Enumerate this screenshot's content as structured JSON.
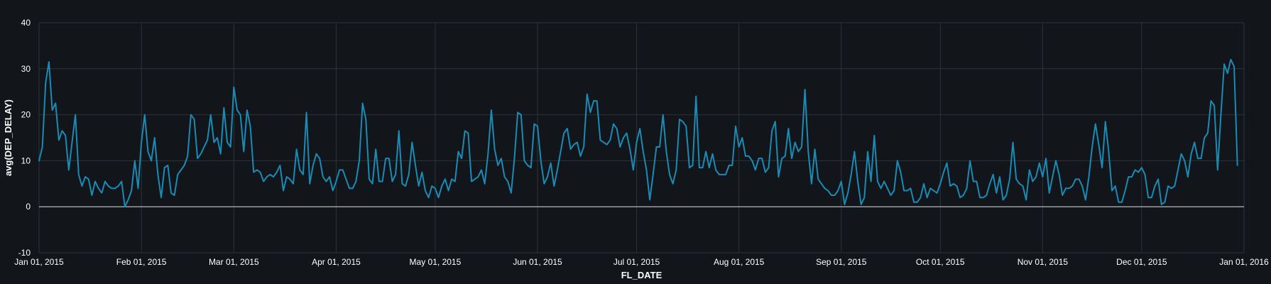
{
  "chart_data": {
    "type": "line",
    "xlabel": "FL_DATE",
    "ylabel": "avg(DEP_DELAY)",
    "ylim": [
      -10,
      40
    ],
    "yticks": [
      -10,
      0,
      10,
      20,
      30,
      40
    ],
    "xlim": [
      "2015-01-01",
      "2016-01-01"
    ],
    "xticks": [
      {
        "date": "2015-01-01",
        "label": "Jan 01, 2015"
      },
      {
        "date": "2015-02-01",
        "label": "Feb 01, 2015"
      },
      {
        "date": "2015-03-01",
        "label": "Mar 01, 2015"
      },
      {
        "date": "2015-04-01",
        "label": "Apr 01, 2015"
      },
      {
        "date": "2015-05-01",
        "label": "May 01, 2015"
      },
      {
        "date": "2015-06-01",
        "label": "Jun 01, 2015"
      },
      {
        "date": "2015-07-01",
        "label": "Jul 01, 2015"
      },
      {
        "date": "2015-08-01",
        "label": "Aug 01, 2015"
      },
      {
        "date": "2015-09-01",
        "label": "Sep 01, 2015"
      },
      {
        "date": "2015-10-01",
        "label": "Oct 01, 2015"
      },
      {
        "date": "2015-11-01",
        "label": "Nov 01, 2015"
      },
      {
        "date": "2015-12-01",
        "label": "Dec 01, 2015"
      },
      {
        "date": "2016-01-01",
        "label": "Jan 01, 2016"
      }
    ],
    "grid": true,
    "line_color": "#1b8bb5",
    "series": [
      {
        "x_start": "2015-01-01",
        "x_step_days": 1,
        "values": [
          10,
          13,
          27,
          31.5,
          21,
          22.5,
          14.5,
          16.5,
          15.5,
          8,
          14,
          20,
          7,
          4.5,
          6.5,
          6,
          2.5,
          5.5,
          4,
          3,
          5.5,
          4.5,
          4,
          4,
          4.5,
          5.5,
          0,
          1.5,
          3.5,
          10,
          4,
          14,
          20,
          12,
          10,
          15,
          7,
          2,
          8.5,
          9,
          3,
          2.5,
          7,
          8,
          9,
          11,
          20,
          19,
          10.5,
          11.5,
          13,
          14.5,
          20,
          14,
          15,
          11.5,
          21.5,
          14,
          13,
          26,
          21,
          20,
          12,
          21,
          17.5,
          7.5,
          8,
          7.5,
          5.5,
          6.5,
          7,
          6.5,
          7.5,
          9,
          3.5,
          6.5,
          6,
          5,
          12.5,
          8,
          7,
          20.5,
          5,
          9,
          11.5,
          10.5,
          6.5,
          5.5,
          6.5,
          3.5,
          5.5,
          8,
          8,
          6,
          4,
          4,
          5.5,
          10,
          22.5,
          19,
          6,
          5,
          12.5,
          5.5,
          5.5,
          10.5,
          10.5,
          5.5,
          7,
          16.5,
          5,
          4.5,
          7,
          14,
          9,
          4.5,
          7.5,
          3.5,
          2,
          4.5,
          4,
          2,
          4.5,
          6,
          3.5,
          6,
          5.5,
          12,
          10.5,
          16.5,
          16,
          5.5,
          6,
          6.5,
          8,
          5,
          11.5,
          21,
          12.5,
          9,
          10.5,
          6.5,
          5.5,
          3,
          10.5,
          20.5,
          20,
          10,
          9,
          8.5,
          18,
          17.5,
          10,
          5,
          6.5,
          9.5,
          4.5,
          8,
          12,
          16,
          17,
          12.5,
          13.5,
          14,
          11,
          13,
          24.5,
          20.5,
          23,
          23,
          14.5,
          14,
          13.5,
          14.5,
          18,
          17,
          13,
          15,
          16,
          12.5,
          8,
          14,
          17,
          12,
          8,
          1.5,
          7,
          13,
          13,
          20,
          12,
          7,
          5,
          8,
          19,
          18.5,
          17.5,
          8.5,
          9,
          24,
          8.5,
          8.5,
          12,
          8.5,
          11.5,
          8,
          7,
          7,
          7,
          9,
          9,
          17.5,
          13,
          15,
          11,
          11,
          10,
          8,
          10.5,
          10.5,
          7.5,
          8.5,
          16.5,
          18.5,
          6.5,
          10.5,
          11,
          17,
          10.5,
          14,
          12,
          13,
          25.5,
          12,
          5,
          12.5,
          6,
          5,
          4,
          3.5,
          2.5,
          2.5,
          3.5,
          5.5,
          0.5,
          3,
          7,
          12,
          5.5,
          0.5,
          2,
          12,
          5.5,
          15.5,
          5.5,
          4,
          5.5,
          4,
          2.5,
          3.5,
          10,
          7.5,
          3.5,
          3.5,
          4,
          1,
          1,
          2,
          5,
          2,
          4,
          3.5,
          3,
          5,
          7.5,
          9.5,
          4.5,
          5,
          4.5,
          2,
          2.5,
          4,
          10,
          5.5,
          5.5,
          2,
          2,
          2.5,
          5,
          7,
          3,
          6.5,
          1.5,
          2.5,
          6,
          14,
          6,
          5,
          4.5,
          1.5,
          8,
          5.5,
          6.5,
          9.5,
          6.5,
          10.5,
          3,
          6.5,
          10,
          7,
          2.5,
          4,
          4,
          4.5,
          6,
          6,
          4.5,
          1.5,
          6.5,
          13,
          18,
          13.5,
          8.5,
          18.5,
          12,
          3.5,
          4.5,
          1,
          1,
          3.5,
          6.5,
          6.5,
          8,
          7.5,
          8.5,
          7,
          2,
          2,
          4.5,
          6,
          0.5,
          1,
          4.5,
          4,
          4.5,
          8,
          11.5,
          10,
          6.5,
          11.5,
          14,
          10.5,
          10.5,
          15,
          16,
          23,
          22,
          8,
          20,
          31,
          29,
          32,
          30.5,
          9
        ]
      }
    ]
  }
}
